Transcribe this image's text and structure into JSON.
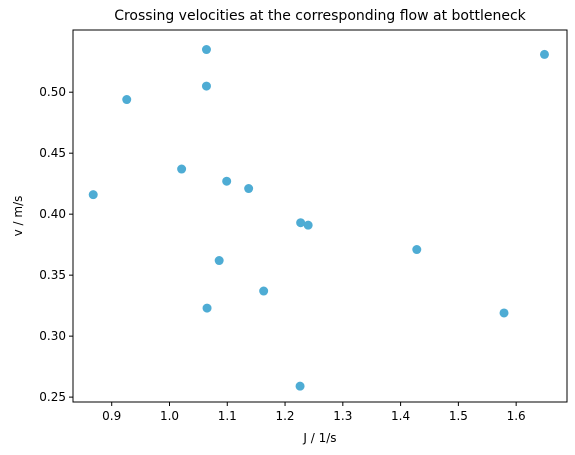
{
  "chart_data": {
    "type": "scatter",
    "title": "Crossing velocities at the corresponding flow at bottleneck",
    "xlabel": "J / 1/s",
    "ylabel": "v / m/s",
    "color": "#4eacd4",
    "x": [
      0.868,
      0.926,
      1.021,
      1.064,
      1.064,
      1.099,
      1.137,
      1.086,
      1.065,
      1.163,
      1.227,
      1.24,
      1.226,
      1.428,
      1.579,
      1.649
    ],
    "values": [
      0.416,
      0.494,
      0.437,
      0.535,
      0.505,
      0.427,
      0.421,
      0.362,
      0.323,
      0.337,
      0.393,
      0.391,
      0.259,
      0.371,
      0.319,
      0.531
    ],
    "xlim": [
      0.833,
      1.688
    ],
    "xticks": [
      0.9,
      {
        "value": 1.0,
        "label": "1.0"
      },
      1.1,
      1.2,
      1.3,
      1.4,
      1.5,
      1.6
    ],
    "ylim": [
      0.246,
      0.551
    ],
    "yticks": [
      0.25,
      {
        "value": 0.3,
        "label": "0.30"
      },
      0.35,
      {
        "value": 0.4,
        "label": "0.40"
      },
      0.45,
      {
        "value": 0.5,
        "label": "0.50"
      }
    ],
    "grid": false
  }
}
